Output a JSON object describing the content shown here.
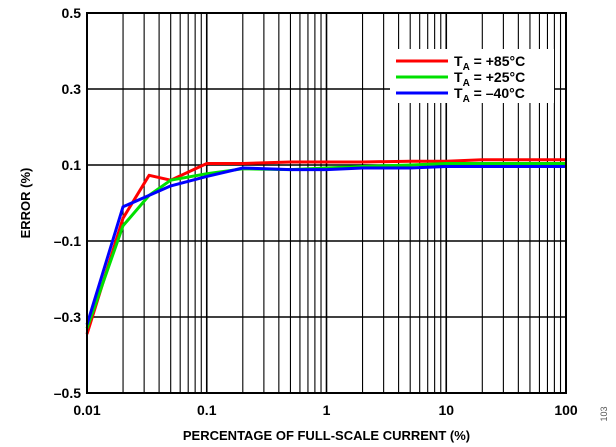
{
  "chart_data": {
    "type": "line",
    "title": "",
    "xlabel": "PERCENTAGE OF FULL-SCALE CURRENT (%)",
    "ylabel": "ERROR (%)",
    "xscale": "log",
    "xlim": [
      0.01,
      100
    ],
    "ylim": [
      -0.5,
      0.5
    ],
    "grid": true,
    "legend_position": "top-right",
    "x_tick_labels": [
      "0.01",
      "0.1",
      "1",
      "10",
      "100"
    ],
    "y_tick_labels": [
      "–0.5",
      "–0.3",
      "–0.1",
      "0.1",
      "0.3",
      "0.5"
    ],
    "x_tick_values": [
      0.01,
      0.1,
      1,
      10,
      100
    ],
    "y_tick_values": [
      -0.5,
      -0.3,
      -0.1,
      0.1,
      0.3,
      0.5
    ],
    "series": [
      {
        "name_main": "T",
        "name_sub": "A",
        "name_rest": " = +85°C",
        "color": "#ff0000",
        "x": [
          0.01,
          0.02,
          0.033,
          0.05,
          0.1,
          0.2,
          0.5,
          1,
          2,
          5,
          10,
          20,
          50,
          100
        ],
        "y": [
          -0.345,
          -0.04,
          0.073,
          0.06,
          0.104,
          0.104,
          0.108,
          0.108,
          0.108,
          0.11,
          0.11,
          0.114,
          0.114,
          0.114
        ]
      },
      {
        "name_main": "T",
        "name_sub": "A",
        "name_rest": " = +25°C",
        "color": "#00e000",
        "x": [
          0.01,
          0.02,
          0.033,
          0.05,
          0.1,
          0.2,
          0.5,
          1,
          2,
          5,
          10,
          20,
          50,
          100
        ],
        "y": [
          -0.33,
          -0.06,
          0.02,
          0.06,
          0.077,
          0.09,
          0.088,
          0.092,
          0.096,
          0.1,
          0.104,
          0.104,
          0.104,
          0.104
        ]
      },
      {
        "name_main": "T",
        "name_sub": "A",
        "name_rest": " = –40°C",
        "color": "#0000ff",
        "x": [
          0.01,
          0.02,
          0.033,
          0.05,
          0.1,
          0.2,
          0.5,
          1,
          2,
          5,
          10,
          20,
          50,
          100
        ],
        "y": [
          -0.32,
          -0.01,
          0.02,
          0.045,
          0.07,
          0.092,
          0.088,
          0.088,
          0.092,
          0.092,
          0.096,
          0.096,
          0.096,
          0.096
        ]
      }
    ]
  },
  "figure_id": "103"
}
